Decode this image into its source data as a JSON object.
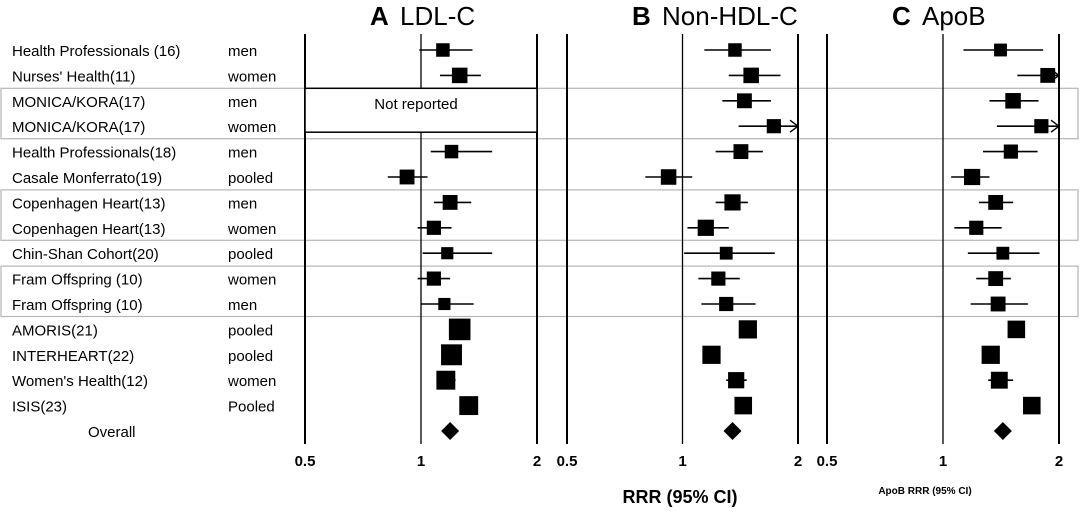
{
  "chart_data": {
    "type": "forest",
    "x_scale": "log2",
    "xlim": [
      0.5,
      2
    ],
    "ticks": [
      0.5,
      1,
      2
    ],
    "tick_labels": [
      "0.5",
      "1",
      "2"
    ],
    "xlabel": "RRR (95% CI)",
    "xlabel_apob": "ApoB RRR (95% CI)",
    "rows": [
      {
        "study": "Health Professionals (16)",
        "group": "men"
      },
      {
        "study": "Nurses' Health(11)",
        "group": "women"
      },
      {
        "study": "MONICA/KORA(17)",
        "group": "men"
      },
      {
        "study": "MONICA/KORA(17)",
        "group": "women"
      },
      {
        "study": "Health Professionals(18)",
        "group": "men"
      },
      {
        "study": "Casale Monferrato(19)",
        "group": "pooled"
      },
      {
        "study": "Copenhagen Heart(13)",
        "group": "men"
      },
      {
        "study": "Copenhagen Heart(13)",
        "group": "women"
      },
      {
        "study": "Chin-Shan Cohort(20)",
        "group": "pooled"
      },
      {
        "study": "Fram Offspring (10)",
        "group": "women"
      },
      {
        "study": "Fram Offspring (10)",
        "group": "men"
      },
      {
        "study": "AMORIS(21)",
        "group": "pooled"
      },
      {
        "study": "INTERHEART(22)",
        "group": "pooled"
      },
      {
        "study": "Women's Health(12)",
        "group": "women"
      },
      {
        "study": "ISIS(23)",
        "group": "Pooled"
      }
    ],
    "overall_label": "Overall",
    "boxed_row_groups": [
      [
        2,
        3
      ],
      [
        6,
        7
      ],
      [
        9,
        10
      ]
    ],
    "panels": [
      {
        "letter": "A",
        "title": "LDL-C",
        "not_reported_rows": [
          2,
          3
        ],
        "not_reported_label": "Not reported",
        "estimates": [
          {
            "point": 1.14,
            "lo": 0.99,
            "hi": 1.36,
            "w": 1
          },
          {
            "point": 1.26,
            "lo": 1.12,
            "hi": 1.43,
            "w": 1.15
          },
          null,
          null,
          {
            "point": 1.2,
            "lo": 1.06,
            "hi": 1.53,
            "w": 1
          },
          {
            "point": 0.92,
            "lo": 0.82,
            "hi": 1.04,
            "w": 1.1
          },
          {
            "point": 1.19,
            "lo": 1.08,
            "hi": 1.35,
            "w": 1.1
          },
          {
            "point": 1.08,
            "lo": 0.98,
            "hi": 1.2,
            "w": 1.05
          },
          {
            "point": 1.17,
            "lo": 1.01,
            "hi": 1.53,
            "w": 0.9
          },
          {
            "point": 1.08,
            "lo": 0.98,
            "hi": 1.19,
            "w": 1.05
          },
          {
            "point": 1.15,
            "lo": 1.0,
            "hi": 1.37,
            "w": 0.9
          },
          {
            "point": 1.26,
            "lo": null,
            "hi": null,
            "w": 1.6
          },
          {
            "point": 1.2,
            "lo": null,
            "hi": null,
            "w": 1.55
          },
          {
            "point": 1.16,
            "lo": 1.1,
            "hi": 1.23,
            "w": 1.4
          },
          {
            "point": 1.33,
            "lo": 1.28,
            "hi": 1.37,
            "w": 1.4
          }
        ],
        "overall": {
          "point": 1.19,
          "lo": 1.16,
          "hi": 1.22
        }
      },
      {
        "letter": "B",
        "title": "Non-HDL-C",
        "not_reported_rows": [],
        "not_reported_label": "",
        "estimates": [
          {
            "point": 1.37,
            "lo": 1.14,
            "hi": 1.7,
            "w": 1
          },
          {
            "point": 1.51,
            "lo": 1.32,
            "hi": 1.8,
            "w": 1.15
          },
          {
            "point": 1.45,
            "lo": 1.27,
            "hi": 1.7,
            "w": 1.1
          },
          {
            "point": 1.73,
            "lo": 1.4,
            "hi": 2.0,
            "w": 1.05,
            "arrow": true
          },
          {
            "point": 1.42,
            "lo": 1.22,
            "hi": 1.62,
            "w": 1.1
          },
          {
            "point": 0.92,
            "lo": 0.8,
            "hi": 1.06,
            "w": 1.15
          },
          {
            "point": 1.35,
            "lo": 1.22,
            "hi": 1.48,
            "w": 1.2
          },
          {
            "point": 1.15,
            "lo": 1.03,
            "hi": 1.32,
            "w": 1.2
          },
          {
            "point": 1.3,
            "lo": 1.01,
            "hi": 1.74,
            "w": 0.95
          },
          {
            "point": 1.24,
            "lo": 1.1,
            "hi": 1.41,
            "w": 1.05
          },
          {
            "point": 1.3,
            "lo": 1.12,
            "hi": 1.55,
            "w": 1.05
          },
          {
            "point": 1.48,
            "lo": null,
            "hi": null,
            "w": 1.35
          },
          {
            "point": 1.19,
            "lo": null,
            "hi": null,
            "w": 1.35
          },
          {
            "point": 1.38,
            "lo": 1.3,
            "hi": 1.47,
            "w": 1.2
          },
          {
            "point": 1.44,
            "lo": null,
            "hi": null,
            "w": 1.3
          }
        ],
        "overall": {
          "point": 1.35,
          "lo": 1.31,
          "hi": 1.39
        }
      },
      {
        "letter": "C",
        "title": "ApoB",
        "not_reported_rows": [],
        "not_reported_label": "",
        "estimates": [
          {
            "point": 1.41,
            "lo": 1.13,
            "hi": 1.82,
            "w": 0.95
          },
          {
            "point": 1.87,
            "lo": 1.56,
            "hi": 2.0,
            "w": 1.1,
            "arrow": true
          },
          {
            "point": 1.52,
            "lo": 1.32,
            "hi": 1.77,
            "w": 1.15
          },
          {
            "point": 1.8,
            "lo": 1.38,
            "hi": 2.0,
            "w": 1.05,
            "arrow": true
          },
          {
            "point": 1.5,
            "lo": 1.27,
            "hi": 1.76,
            "w": 1.05
          },
          {
            "point": 1.19,
            "lo": 1.05,
            "hi": 1.32,
            "w": 1.2
          },
          {
            "point": 1.37,
            "lo": 1.24,
            "hi": 1.52,
            "w": 1.1
          },
          {
            "point": 1.22,
            "lo": 1.07,
            "hi": 1.42,
            "w": 1.05
          },
          {
            "point": 1.43,
            "lo": 1.16,
            "hi": 1.78,
            "w": 0.95
          },
          {
            "point": 1.37,
            "lo": 1.22,
            "hi": 1.5,
            "w": 1.1
          },
          {
            "point": 1.39,
            "lo": 1.18,
            "hi": 1.66,
            "w": 1.1
          },
          {
            "point": 1.55,
            "lo": null,
            "hi": null,
            "w": 1.3
          },
          {
            "point": 1.33,
            "lo": null,
            "hi": null,
            "w": 1.35
          },
          {
            "point": 1.4,
            "lo": 1.31,
            "hi": 1.52,
            "w": 1.25
          },
          {
            "point": 1.7,
            "lo": null,
            "hi": null,
            "w": 1.3
          }
        ],
        "overall": {
          "point": 1.43,
          "lo": 1.39,
          "hi": 1.47
        }
      }
    ]
  }
}
